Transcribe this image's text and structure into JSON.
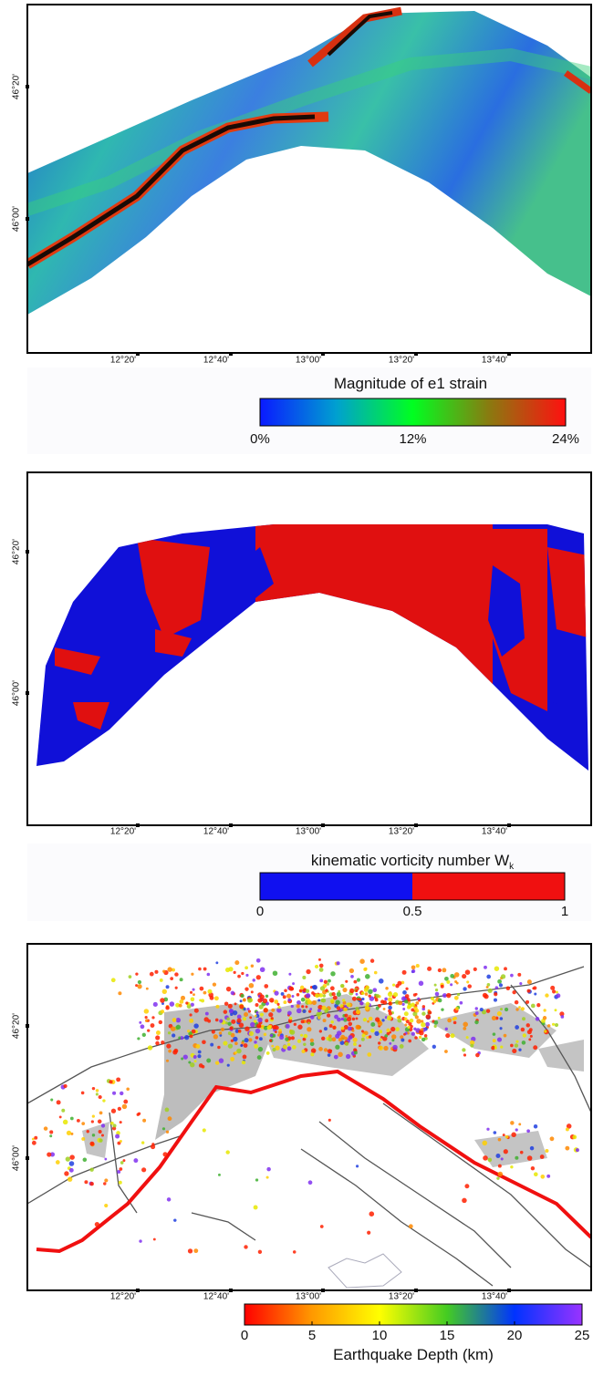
{
  "panels": [
    {
      "y_axis_labels": [
        "46°20'",
        "46°00'"
      ],
      "x_axis_labels": [
        "12°20'",
        "12°40'",
        "13°00'",
        "13°20'",
        "13°40'"
      ],
      "colorbar": {
        "title": "Magnitude of e1 strain",
        "tick_labels": [
          "0%",
          "12%",
          "24%"
        ]
      }
    },
    {
      "y_axis_labels": [
        "46°20'",
        "46°00'"
      ],
      "x_axis_labels": [
        "12°20'",
        "12°40'",
        "13°00'",
        "13°20'",
        "13°40'"
      ],
      "colorbar": {
        "title": "kinematic vorticity number W",
        "title_subscript": "k",
        "tick_labels": [
          "0",
          "0.5",
          "1"
        ]
      }
    },
    {
      "y_axis_labels": [
        "46°20'",
        "46°00'"
      ],
      "x_axis_labels": [
        "12°20'",
        "12°40'",
        "13°00'",
        "13°20'",
        "13°40'"
      ],
      "colorbar": {
        "title": "Earthquake Depth (km)",
        "tick_labels": [
          "0",
          "5",
          "10",
          "15",
          "20",
          "25"
        ]
      }
    }
  ]
}
